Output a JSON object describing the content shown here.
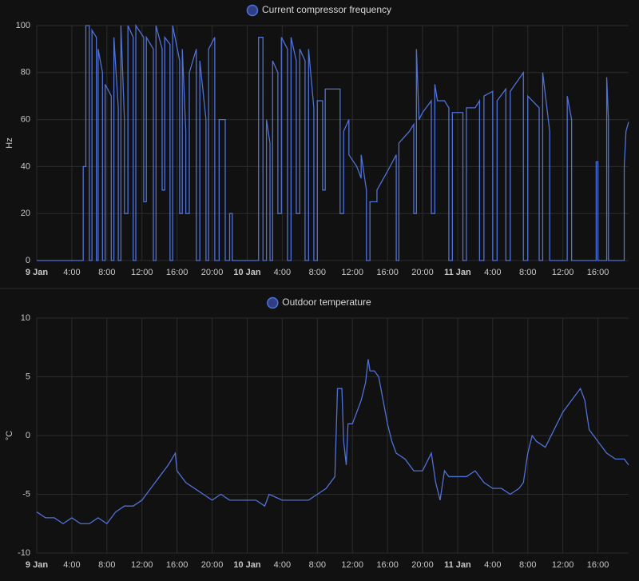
{
  "chart_data": [
    {
      "type": "line",
      "y_label": "Hz",
      "grid": true,
      "step": true,
      "xlim": [
        0,
        67.5
      ],
      "xticks": [
        {
          "value": 0,
          "label": "9 Jan"
        },
        {
          "value": 4,
          "label": "4:00"
        },
        {
          "value": 8,
          "label": "8:00"
        },
        {
          "value": 12,
          "label": "12:00"
        },
        {
          "value": 16,
          "label": "16:00"
        },
        {
          "value": 20,
          "label": "20:00"
        },
        {
          "value": 24,
          "label": "10 Jan"
        },
        {
          "value": 28,
          "label": "4:00"
        },
        {
          "value": 32,
          "label": "8:00"
        },
        {
          "value": 36,
          "label": "12:00"
        },
        {
          "value": 40,
          "label": "16:00"
        },
        {
          "value": 44,
          "label": "20:00"
        },
        {
          "value": 48,
          "label": "11 Jan"
        },
        {
          "value": 52,
          "label": "4:00"
        },
        {
          "value": 56,
          "label": "8:00"
        },
        {
          "value": 60,
          "label": "12:00"
        },
        {
          "value": 64,
          "label": "16:00"
        }
      ],
      "ylim": [
        0,
        100
      ],
      "yticks": [
        0,
        20,
        40,
        60,
        80,
        100
      ],
      "x": [
        0,
        5.3,
        5.3,
        5.6,
        5.6,
        6.0,
        6.0,
        6.3,
        6.3,
        6.8,
        6.8,
        7.0,
        7.0,
        7.5,
        7.5,
        7.8,
        7.8,
        8.5,
        8.5,
        8.8,
        8.8,
        9.3,
        9.3,
        9.6,
        9.6,
        10.0,
        10.0,
        10.4,
        10.4,
        11.0,
        11.0,
        11.3,
        11.3,
        12.2,
        12.2,
        12.5,
        12.5,
        13.3,
        13.3,
        13.6,
        13.6,
        14.3,
        14.3,
        14.6,
        14.6,
        15.2,
        15.2,
        15.5,
        15.5,
        16.3,
        16.3,
        16.6,
        16.6,
        17.0,
        17.0,
        17.4,
        17.4,
        18.2,
        18.2,
        18.6,
        18.6,
        19.3,
        19.3,
        19.6,
        19.6,
        20.3,
        20.3,
        20.8,
        20.8,
        21.5,
        21.5,
        22.0,
        22.0,
        22.3,
        22.3,
        25.3,
        25.3,
        25.8,
        25.8,
        26.2,
        26.2,
        26.6,
        26.6,
        26.9,
        26.9,
        27.5,
        27.5,
        27.9,
        27.9,
        28.6,
        28.6,
        29.0,
        29.0,
        29.6,
        29.6,
        30.0,
        30.0,
        30.6,
        30.6,
        31.0,
        31.0,
        31.6,
        31.6,
        32.0,
        32.0,
        32.6,
        32.6,
        32.9,
        32.9,
        34.6,
        34.6,
        35.0,
        35.0,
        35.6,
        35.6,
        36.5,
        37.0,
        37.0,
        37.6,
        37.6,
        38.0,
        38.0,
        38.8,
        38.8,
        40.0,
        41.0,
        41.0,
        41.3,
        41.3,
        42.5,
        43.0,
        43.0,
        43.3,
        43.3,
        43.6,
        44.0,
        45.0,
        45.0,
        45.4,
        45.4,
        45.7,
        46.5,
        47.0,
        47.0,
        47.4,
        47.4,
        48.6,
        48.6,
        49.0,
        49.0,
        50.0,
        50.5,
        50.5,
        51.0,
        51.0,
        52.0,
        52.0,
        52.5,
        52.5,
        53.5,
        53.5,
        54.0,
        54.0,
        55.5,
        55.5,
        56.0,
        56.0,
        57.3,
        57.3,
        57.7,
        57.7,
        58.5,
        58.5,
        60.5,
        60.5,
        61.0,
        61.0,
        63.8,
        63.8,
        64.0,
        64.0,
        65.0,
        65.0,
        65.2,
        65.2,
        67.0,
        67.0,
        67.2,
        67.5
      ],
      "series": [
        {
          "name": "Current compressor frequency",
          "color": "#5071d6",
          "values": [
            0,
            0,
            40,
            40,
            100,
            100,
            0,
            0,
            98,
            95,
            0,
            0,
            90,
            80,
            0,
            0,
            75,
            70,
            0,
            0,
            95,
            65,
            0,
            0,
            100,
            60,
            20,
            20,
            100,
            95,
            0,
            0,
            100,
            95,
            25,
            25,
            95,
            90,
            0,
            0,
            100,
            90,
            30,
            30,
            95,
            92,
            0,
            0,
            100,
            85,
            20,
            20,
            90,
            55,
            20,
            20,
            80,
            90,
            0,
            0,
            85,
            60,
            0,
            0,
            90,
            95,
            0,
            0,
            60,
            60,
            0,
            0,
            20,
            20,
            0,
            0,
            95,
            95,
            0,
            0,
            60,
            50,
            0,
            0,
            85,
            80,
            20,
            20,
            95,
            90,
            0,
            0,
            95,
            85,
            20,
            20,
            90,
            85,
            0,
            0,
            90,
            65,
            0,
            0,
            68,
            68,
            30,
            30,
            73,
            73,
            20,
            20,
            55,
            60,
            45,
            40,
            35,
            45,
            30,
            0,
            0,
            25,
            25,
            30,
            38,
            45,
            0,
            0,
            50,
            55,
            58,
            20,
            20,
            90,
            60,
            63,
            68,
            20,
            20,
            75,
            68,
            68,
            65,
            0,
            0,
            63,
            63,
            0,
            0,
            65,
            65,
            68,
            0,
            0,
            70,
            72,
            0,
            0,
            68,
            73,
            0,
            0,
            72,
            80,
            0,
            0,
            70,
            65,
            0,
            0,
            80,
            55,
            0,
            0,
            70,
            60,
            0,
            0,
            42,
            42,
            0,
            0,
            78,
            60,
            0,
            0,
            40,
            55,
            59
          ]
        }
      ]
    },
    {
      "type": "line",
      "y_label": "°C",
      "grid": true,
      "step": true,
      "xlim": [
        0,
        67.5
      ],
      "xticks": [
        {
          "value": 0,
          "label": "9 Jan"
        },
        {
          "value": 4,
          "label": "4:00"
        },
        {
          "value": 8,
          "label": "8:00"
        },
        {
          "value": 12,
          "label": "12:00"
        },
        {
          "value": 16,
          "label": "16:00"
        },
        {
          "value": 20,
          "label": "20:00"
        },
        {
          "value": 24,
          "label": "10 Jan"
        },
        {
          "value": 28,
          "label": "4:00"
        },
        {
          "value": 32,
          "label": "8:00"
        },
        {
          "value": 36,
          "label": "12:00"
        },
        {
          "value": 40,
          "label": "16:00"
        },
        {
          "value": 44,
          "label": "20:00"
        },
        {
          "value": 48,
          "label": "11 Jan"
        },
        {
          "value": 52,
          "label": "4:00"
        },
        {
          "value": 56,
          "label": "8:00"
        },
        {
          "value": 60,
          "label": "12:00"
        },
        {
          "value": 64,
          "label": "16:00"
        }
      ],
      "ylim": [
        -10,
        10
      ],
      "yticks": [
        -10,
        -5,
        0,
        5,
        10
      ],
      "x": [
        0,
        1,
        2,
        3,
        4,
        5,
        6,
        7,
        8,
        9,
        10,
        11,
        12,
        13,
        14,
        15,
        15.8,
        16,
        17,
        18,
        19,
        20,
        21,
        22,
        23,
        24,
        25,
        26,
        26.5,
        28,
        30,
        31,
        32,
        33,
        34,
        34.3,
        34.8,
        35,
        35.3,
        35.5,
        36,
        36.5,
        37,
        37.5,
        37.8,
        38,
        38.5,
        39,
        39.5,
        40,
        40.5,
        41,
        42,
        43,
        44,
        45,
        45.5,
        46,
        46.5,
        47,
        48,
        49,
        50,
        51,
        52,
        53,
        54,
        55,
        55.5,
        56,
        56.5,
        57,
        58,
        59,
        60,
        61,
        62,
        62.5,
        63,
        64,
        65,
        66,
        67,
        67.5
      ],
      "series": [
        {
          "name": "Outdoor temperature",
          "color": "#5071d6",
          "values": [
            -6.5,
            -7,
            -7,
            -7.5,
            -7,
            -7.5,
            -7.5,
            -7,
            -7.5,
            -6.5,
            -6,
            -6,
            -5.5,
            -4.5,
            -3.5,
            -2.5,
            -1.5,
            -3,
            -4,
            -4.5,
            -5,
            -5.5,
            -5,
            -5.5,
            -5.5,
            -5.5,
            -5.5,
            -6,
            -5,
            -5.5,
            -5.5,
            -5.5,
            -5,
            -4.5,
            -3.5,
            4,
            4,
            -0.5,
            -2.5,
            1,
            1,
            2,
            3,
            4.5,
            6.5,
            5.5,
            5.5,
            5,
            3,
            1,
            -0.5,
            -1.5,
            -2,
            -3,
            -3,
            -1.5,
            -4,
            -5.5,
            -3,
            -3.5,
            -3.5,
            -3.5,
            -3,
            -4,
            -4.5,
            -4.5,
            -5,
            -4.5,
            -4,
            -1.5,
            0,
            -0.5,
            -1,
            0.5,
            2,
            3,
            4,
            3,
            0.5,
            -0.5,
            -1.5,
            -2,
            -2,
            -2.5
          ]
        }
      ]
    }
  ]
}
